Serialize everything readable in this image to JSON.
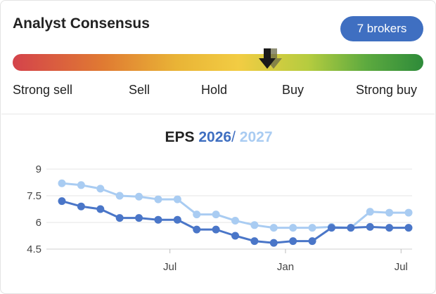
{
  "header": {
    "title": "Analyst Consensus",
    "brokers_badge": "7 brokers"
  },
  "gauge": {
    "labels": [
      "Strong sell",
      "Sell",
      "Hold",
      "Buy",
      "Strong buy"
    ],
    "pointer_value": 0.62
  },
  "chart_title": {
    "prefix": "EPS",
    "year1": "2026",
    "separator": "/",
    "year2": "2027"
  },
  "colors": {
    "series_2026": "#4a76c8",
    "series_2027": "#a9ccf2",
    "badge": "#3f6fc1"
  },
  "chart_data": {
    "type": "line",
    "title": "EPS 2026 / 2027",
    "ylim": [
      4.5,
      9
    ],
    "yticks": [
      "9",
      "7.5",
      "6",
      "4.5"
    ],
    "ytick_values": [
      9,
      7.5,
      6,
      4.5
    ],
    "xtick_labels": [
      "Jul",
      "Jan",
      "Jul"
    ],
    "xtick_index": [
      5.5,
      11.5,
      17.5
    ],
    "grid": true,
    "series": [
      {
        "name": "2026",
        "values": [
          7.2,
          6.9,
          6.75,
          6.25,
          6.25,
          6.15,
          6.15,
          5.6,
          5.6,
          5.25,
          4.95,
          4.85,
          4.95,
          4.95,
          5.7,
          5.7,
          5.75,
          5.7,
          5.7
        ]
      },
      {
        "name": "2027",
        "values": [
          8.2,
          8.1,
          7.9,
          7.5,
          7.45,
          7.3,
          7.3,
          6.45,
          6.45,
          6.1,
          5.85,
          5.7,
          5.7,
          5.7,
          5.75,
          5.7,
          6.6,
          6.55,
          6.55
        ]
      }
    ]
  }
}
